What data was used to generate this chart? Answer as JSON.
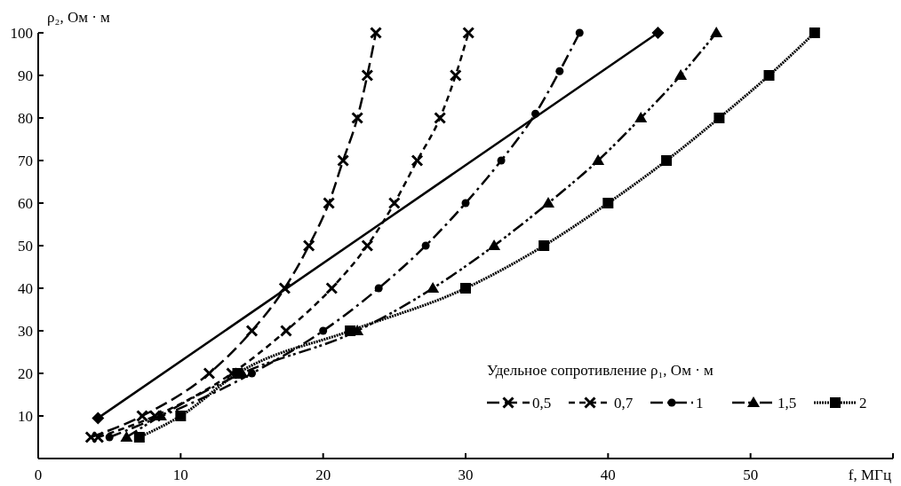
{
  "chart_data": {
    "type": "line",
    "xlabel": "f, МГц",
    "ylabel": "ρ₂, Ом · м",
    "legend_title": "Удельное сопротивление ρ₁, Ом · м",
    "xlim": [
      0,
      60
    ],
    "ylim": [
      0,
      100
    ],
    "xticks": [
      {
        "value": 0,
        "label": "0"
      },
      10,
      20,
      30,
      40,
      50,
      {
        "value": 60,
        "label": null
      }
    ],
    "yticks": [
      10,
      20,
      30,
      40,
      50,
      60,
      70,
      80,
      90,
      100
    ],
    "grid": false,
    "legend": "bottom right",
    "series": [
      {
        "name": "0,5",
        "color": "#000000",
        "marker": "cross",
        "line_style": "dashed",
        "x": [
          3.7,
          7.3,
          12.0,
          15.0,
          17.3,
          19.0,
          20.4,
          21.4,
          22.4,
          23.1,
          23.7
        ],
        "values": [
          5,
          10,
          20,
          30,
          40,
          50,
          60,
          70,
          80,
          90,
          100
        ]
      },
      {
        "name": "0,7",
        "color": "#000000",
        "marker": "cross",
        "line_style": "dashed",
        "x": [
          4.2,
          8.2,
          13.6,
          17.4,
          20.6,
          23.1,
          25.0,
          26.6,
          28.2,
          29.3,
          30.2
        ],
        "values": [
          5,
          10,
          20,
          30,
          40,
          50,
          60,
          70,
          80,
          90,
          100
        ]
      },
      {
        "name": "1",
        "color": "#000000",
        "marker": "circle",
        "line_style": "dashed",
        "x": [
          5.0,
          15.0,
          20.0,
          23.9,
          27.2,
          30.0,
          32.5,
          34.9,
          36.6,
          38.0
        ],
        "values": [
          5,
          20,
          30,
          40,
          50,
          60,
          70,
          81,
          91,
          100
        ]
      },
      {
        "name": "1,5",
        "color": "#000000",
        "marker": "triangle",
        "line_style": "dashed",
        "x": [
          6.2,
          8.6,
          14.3,
          22.4,
          27.7,
          32.0,
          35.8,
          39.3,
          42.3,
          45.1,
          47.6
        ],
        "values": [
          5,
          10,
          20,
          30,
          40,
          50,
          60,
          70,
          80,
          90,
          100
        ]
      },
      {
        "name": "2",
        "color": "#000000",
        "marker": "square",
        "line_style": "dotted",
        "x": [
          7.1,
          10.0,
          14.0,
          21.9,
          30.0,
          35.5,
          40.0,
          44.1,
          47.8,
          51.3,
          54.5
        ],
        "values": [
          5,
          10,
          20,
          30,
          40,
          50,
          60,
          70,
          80,
          90,
          100
        ]
      },
      {
        "color": "#000000",
        "marker": "diamond",
        "line_style": "solid",
        "x": [
          4.2,
          43.5
        ],
        "values": [
          9.5,
          100
        ]
      }
    ]
  }
}
